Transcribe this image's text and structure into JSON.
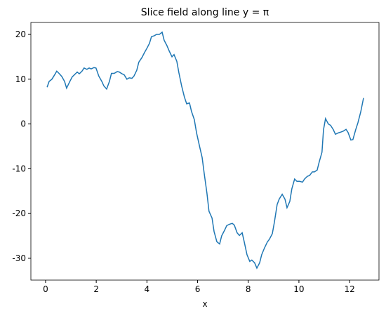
{
  "chart_data": {
    "type": "line",
    "title": "Slice field along line y = π",
    "xlabel": "x",
    "x": [
      0.06,
      0.14,
      0.25,
      0.36,
      0.44,
      0.53,
      0.64,
      0.75,
      0.83,
      0.94,
      1.05,
      1.14,
      1.25,
      1.33,
      1.44,
      1.52,
      1.63,
      1.72,
      1.8,
      1.91,
      1.99,
      2.1,
      2.22,
      2.3,
      2.41,
      2.52,
      2.6,
      2.71,
      2.83,
      2.91,
      3.02,
      3.1,
      3.21,
      3.3,
      3.41,
      3.49,
      3.6,
      3.68,
      3.8,
      3.91,
      3.99,
      4.1,
      4.18,
      4.29,
      4.38,
      4.49,
      4.6,
      4.68,
      4.79,
      4.88,
      4.99,
      5.07,
      5.18,
      5.26,
      5.37,
      5.48,
      5.57,
      5.68,
      5.76,
      5.87,
      5.96,
      6.07,
      6.18,
      6.26,
      6.37,
      6.45,
      6.57,
      6.65,
      6.76,
      6.87,
      6.95,
      7.06,
      7.15,
      7.26,
      7.37,
      7.45,
      7.56,
      7.65,
      7.76,
      7.84,
      7.95,
      8.06,
      8.14,
      8.25,
      8.34,
      8.45,
      8.53,
      8.64,
      8.75,
      8.84,
      8.95,
      9.03,
      9.14,
      9.22,
      9.34,
      9.45,
      9.53,
      9.64,
      9.72,
      9.83,
      9.92,
      10.03,
      10.14,
      10.22,
      10.33,
      10.42,
      10.53,
      10.61,
      10.72,
      10.8,
      10.91,
      10.97,
      11.05,
      11.16,
      11.25,
      11.36,
      11.44,
      11.55,
      11.66,
      11.75,
      11.86,
      11.94,
      12.05,
      12.13,
      12.24,
      12.33,
      12.44,
      12.55
    ],
    "series": [
      {
        "color": "#1f77b4",
        "values": [
          8.2,
          9.5,
          10.0,
          11.0,
          11.8,
          11.3,
          10.6,
          9.5,
          8.0,
          9.3,
          10.5,
          11.0,
          11.6,
          11.2,
          11.8,
          12.5,
          12.2,
          12.5,
          12.3,
          12.6,
          12.5,
          10.7,
          9.5,
          8.5,
          7.8,
          9.5,
          11.3,
          11.3,
          11.7,
          11.6,
          11.2,
          11.0,
          10.0,
          10.3,
          10.2,
          10.7,
          12.0,
          13.8,
          14.8,
          16.0,
          16.8,
          18.0,
          19.5,
          19.7,
          20.0,
          20.0,
          20.5,
          18.7,
          17.5,
          16.3,
          15.0,
          15.5,
          14.0,
          11.5,
          8.5,
          6.0,
          4.5,
          4.7,
          2.8,
          1.0,
          -2.0,
          -4.8,
          -7.5,
          -11.0,
          -15.5,
          -19.5,
          -21.0,
          -24.0,
          -26.3,
          -26.8,
          -25.0,
          -23.8,
          -22.7,
          -22.4,
          -22.2,
          -22.6,
          -24.3,
          -24.9,
          -24.3,
          -26.3,
          -29.2,
          -30.7,
          -30.4,
          -31.0,
          -32.2,
          -31.0,
          -29.2,
          -27.7,
          -26.4,
          -25.7,
          -24.5,
          -22.0,
          -18.0,
          -16.8,
          -15.7,
          -16.8,
          -18.7,
          -17.3,
          -14.5,
          -12.3,
          -12.8,
          -12.8,
          -13.0,
          -12.3,
          -11.7,
          -11.5,
          -10.7,
          -10.7,
          -10.3,
          -8.5,
          -6.3,
          -1.3,
          1.2,
          0.0,
          -0.3,
          -1.3,
          -2.3,
          -2.0,
          -1.8,
          -1.6,
          -1.2,
          -1.9,
          -3.6,
          -3.5,
          -1.3,
          0.3,
          2.7,
          5.8
        ]
      }
    ],
    "xlim": [
      -0.58,
      13.16
    ],
    "xticks": [
      0,
      2,
      4,
      6,
      8,
      10,
      12
    ],
    "ylim": [
      -34.87,
      22.67
    ],
    "yticks": [
      -30,
      -20,
      -10,
      0,
      10,
      20
    ]
  }
}
